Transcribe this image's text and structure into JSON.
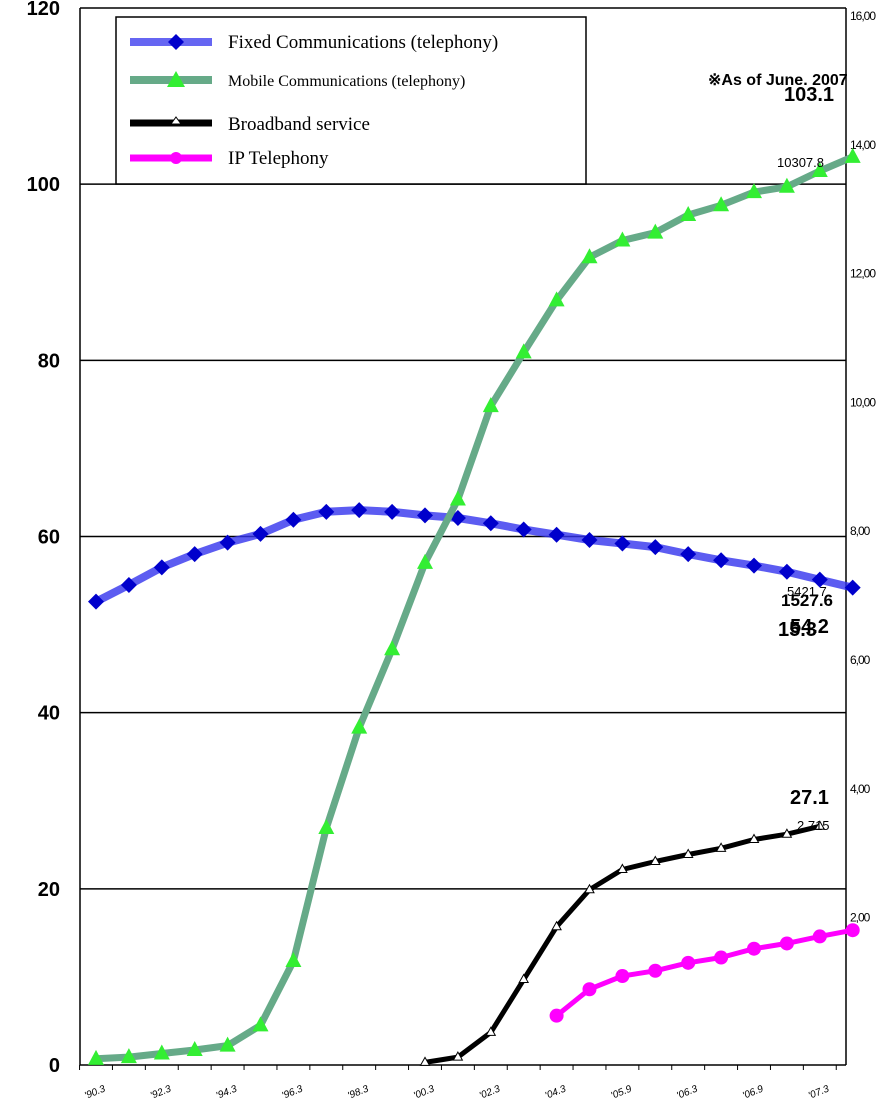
{
  "note": "※As of June. 2007",
  "chart_data": {
    "type": "line",
    "y_left": {
      "ylim": [
        0,
        120
      ],
      "ticks": [
        "0",
        "20",
        "40",
        "60",
        "80",
        "100",
        "120"
      ]
    },
    "y_right": {
      "ticks": [
        "2,00",
        "4,00",
        "6,00",
        "8,00",
        "10,00",
        "12,00",
        "14,00",
        "16,00"
      ]
    },
    "grid": true,
    "legend_position": "top-left",
    "x_labels": [
      "'90.3",
      "'92.3",
      "'94.3",
      "'96.3",
      "'98.3",
      "'00.3",
      "'02.3",
      "'04.3",
      "'05.9",
      "'06.3",
      "'06.9",
      "'07.3"
    ],
    "x_label_positions": [
      0,
      2,
      4,
      6,
      8,
      10,
      12,
      14,
      16,
      18,
      20,
      22
    ],
    "series": [
      {
        "name": "Fixed Communications (telephony)",
        "color": "#3333ee",
        "marker": "diamond",
        "start": 0,
        "values": [
          52.6,
          54.5,
          56.5,
          58.0,
          59.3,
          60.3,
          61.9,
          62.8,
          63.0,
          62.8,
          62.4,
          62.1,
          61.5,
          60.8,
          60.2,
          59.6,
          59.2,
          58.8,
          58.0,
          57.3,
          56.7,
          56.0,
          55.1,
          54.2
        ]
      },
      {
        "name": "Mobile Communications (telephony)",
        "color": "#66aa88",
        "marker": "triangle",
        "start": 0,
        "values": [
          0.7,
          0.9,
          1.3,
          1.7,
          2.2,
          4.5,
          11.8,
          26.9,
          38.3,
          47.2,
          57.0,
          64.2,
          74.8,
          80.9,
          86.8,
          91.7,
          93.6,
          94.5,
          96.5,
          97.6,
          99.1,
          99.7,
          101.5,
          103.1
        ]
      },
      {
        "name": "Broadband service",
        "color": "#000000",
        "marker": "triangle-small",
        "start": 10,
        "values": [
          0.3,
          0.9,
          3.7,
          9.7,
          15.7,
          19.9,
          22.2,
          23.1,
          23.9,
          24.6,
          25.6,
          26.2,
          27.1
        ]
      },
      {
        "name": "IP Telephony",
        "color": "#ff00ff",
        "marker": "circle",
        "start": 14,
        "values": [
          5.6,
          8.6,
          10.1,
          10.7,
          11.6,
          12.2,
          13.2,
          13.8,
          14.6,
          15.3
        ]
      }
    ],
    "end_labels": [
      {
        "series": 1,
        "value": "103.1",
        "sub": "10307.8"
      },
      {
        "series": 0,
        "value": "54.2",
        "sub": "5421.7"
      },
      {
        "series": 2,
        "value": "27.1",
        "sub": "2,715"
      },
      {
        "series": 3,
        "value": "15.3",
        "sub": "1527.6"
      }
    ]
  }
}
